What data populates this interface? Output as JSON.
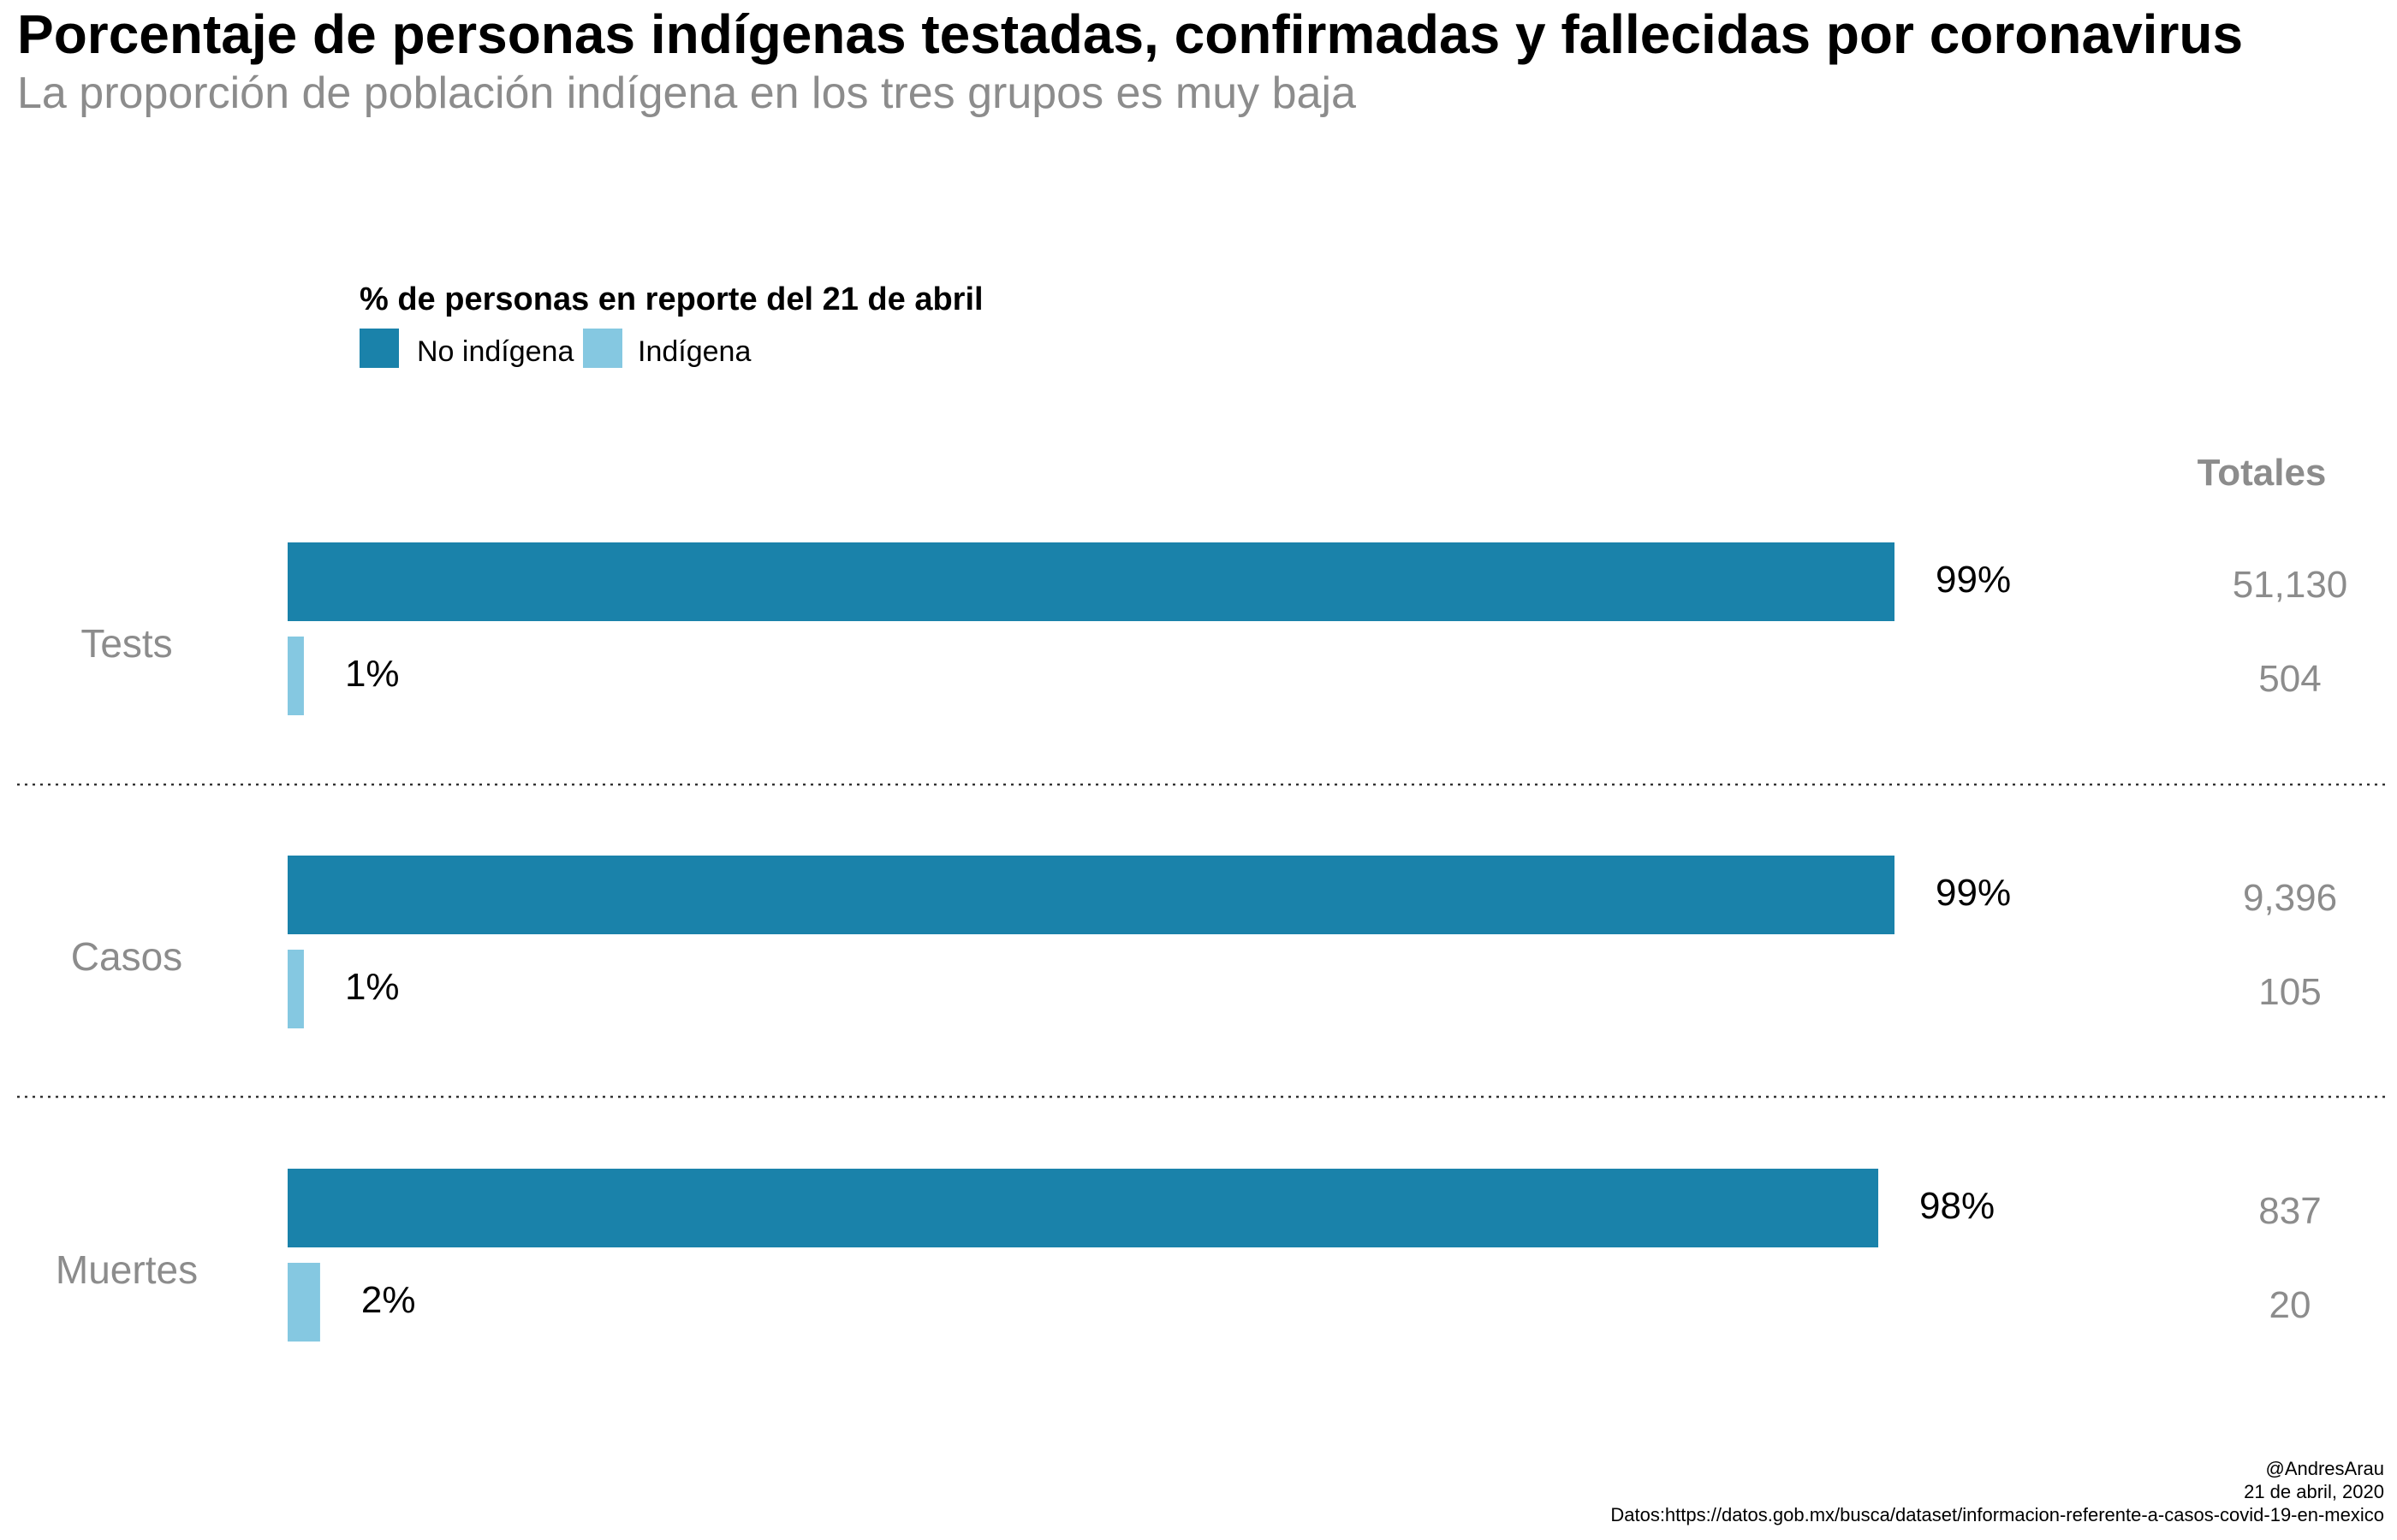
{
  "colors": {
    "no_indigena": "#1a82aa",
    "indigena": "#85c8e1"
  },
  "chart_data": {
    "type": "bar",
    "orientation": "horizontal",
    "title": "Porcentaje de personas indígenas testadas, confirmadas y fallecidas por coronavirus",
    "subtitle": "La proporción de población indígena en los tres grupos es muy baja",
    "legend_title": "% de personas en reporte del 21 de abril",
    "legend_position": "top-left",
    "categories": [
      "Tests",
      "Casos",
      "Muertes"
    ],
    "xlim": [
      0,
      100
    ],
    "grid": false,
    "series": [
      {
        "name": "No indígena",
        "color": "#1a82aa",
        "values": [
          99,
          99,
          98
        ],
        "labels": [
          "99%",
          "99%",
          "98%"
        ],
        "totals": [
          "51,130",
          "9,396",
          "837"
        ]
      },
      {
        "name": "Indígena",
        "color": "#85c8e1",
        "values": [
          1,
          1,
          2
        ],
        "labels": [
          "1%",
          "1%",
          "2%"
        ],
        "totals": [
          "504",
          "105",
          "20"
        ]
      }
    ],
    "totals_header": "Totales"
  },
  "caption": {
    "author": "@AndresArau",
    "date": "21 de abril, 2020",
    "source": "Datos:https://datos.gob.mx/busca/dataset/informacion-referente-a-casos-covid-19-en-mexico"
  }
}
